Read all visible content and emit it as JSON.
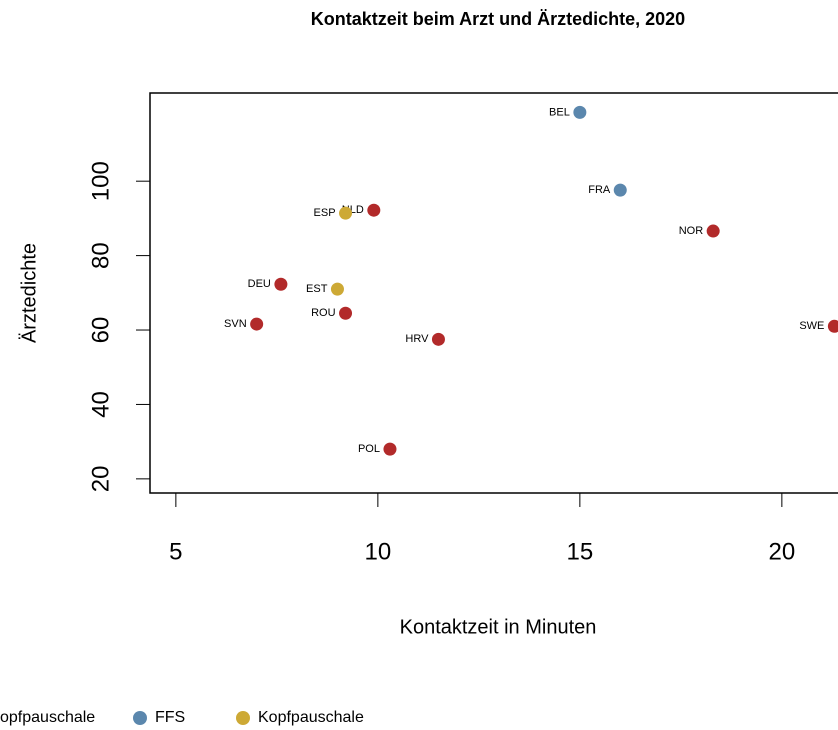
{
  "chart_data": {
    "type": "scatter",
    "title": "Kontaktzeit beim Arzt und Ärztedichte, 2020",
    "xlabel": "Kontaktzeit in Minuten",
    "ylabel": "Ärztedichte",
    "xlim": [
      4.36,
      22.2
    ],
    "ylim": [
      16.2,
      123.7
    ],
    "xticks": [
      5,
      10,
      15,
      20
    ],
    "yticks": [
      20,
      40,
      60,
      80,
      100
    ],
    "series": [
      {
        "name": "opfpauschale",
        "color": "#b22a2a",
        "labels": [
          "NOR",
          "SWE",
          "NLD",
          "DEU",
          "ROU",
          "SVN",
          "HRV",
          "POL"
        ],
        "x": [
          18.3,
          21.3,
          9.9,
          7.6,
          9.2,
          7.0,
          11.5,
          10.3
        ],
        "values": [
          86.6,
          61.0,
          92.2,
          72.3,
          64.5,
          61.6,
          57.5,
          28.0
        ]
      },
      {
        "name": "FFS",
        "color": "#5b87ad",
        "labels": [
          "BEL",
          "FRA"
        ],
        "x": [
          15.0,
          16.0
        ],
        "values": [
          118.5,
          97.6
        ]
      },
      {
        "name": "Kopfpauschale",
        "color": "#cda935",
        "labels": [
          "ESP",
          "EST"
        ],
        "x": [
          9.2,
          9.0
        ],
        "values": [
          91.4,
          71.0
        ]
      }
    ]
  }
}
